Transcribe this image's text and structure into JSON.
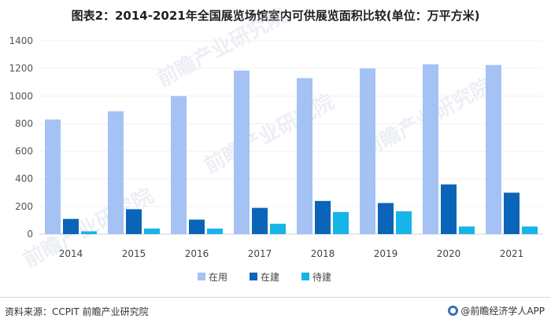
{
  "title": "图表2：2014-2021年全国展览场馆室内可供展览面积比较(单位：万平方米)",
  "watermark": "前瞻产业研究院",
  "footer": {
    "source": "资料来源：CCPIT 前瞻产业研究院",
    "brand": "@前瞻经济学人APP"
  },
  "chart_data": {
    "type": "bar",
    "categories": [
      "2014",
      "2015",
      "2016",
      "2017",
      "2018",
      "2019",
      "2020",
      "2021"
    ],
    "series": [
      {
        "name": "在用",
        "color": "#a4c2f4",
        "values": [
          830,
          890,
          1000,
          1185,
          1130,
          1200,
          1230,
          1225
        ]
      },
      {
        "name": "在建",
        "color": "#0a64b8",
        "values": [
          110,
          180,
          105,
          190,
          240,
          225,
          360,
          300
        ]
      },
      {
        "name": "待建",
        "color": "#16b4e8",
        "values": [
          20,
          40,
          40,
          75,
          160,
          165,
          55,
          55
        ]
      }
    ],
    "ylim": [
      0,
      1400
    ],
    "yticks": [
      0,
      200,
      400,
      600,
      800,
      1000,
      1200,
      1400
    ],
    "grid": true,
    "legend": "bottom"
  }
}
